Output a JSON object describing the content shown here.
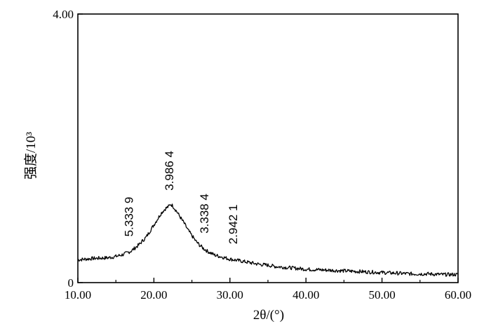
{
  "chart_data": {
    "type": "line",
    "title": "",
    "xlabel": "2θ/(°)",
    "ylabel": "强度/10³",
    "xlim": [
      10,
      60
    ],
    "ylim": [
      0,
      4
    ],
    "x_ticks": [
      10,
      20,
      30,
      40,
      50,
      60
    ],
    "x_tick_labels": [
      "10.00",
      "20.00",
      "30.00",
      "40.00",
      "50.00",
      "60.00"
    ],
    "y_ticks": [
      0,
      4
    ],
    "y_tick_labels": [
      "0",
      "4.00"
    ],
    "grid": false,
    "legend": "none",
    "line_color": "#000000",
    "series": [
      {
        "x": [
          10,
          12,
          14,
          15,
          16,
          17,
          18,
          18.5,
          19,
          19.5,
          20,
          20.5,
          21,
          21.5,
          22,
          22.2,
          22.5,
          23,
          23.5,
          24,
          24.5,
          25,
          25.5,
          26,
          26.5,
          27,
          27.5,
          28,
          29,
          30,
          31,
          32,
          33,
          34,
          35,
          36,
          38,
          40,
          42,
          44,
          46,
          48,
          50,
          52,
          54,
          56,
          58,
          60
        ],
        "y": [
          0.34,
          0.36,
          0.37,
          0.39,
          0.42,
          0.47,
          0.56,
          0.62,
          0.68,
          0.77,
          0.86,
          0.95,
          1.04,
          1.1,
          1.14,
          1.17,
          1.14,
          1.06,
          0.97,
          0.88,
          0.78,
          0.7,
          0.62,
          0.56,
          0.51,
          0.47,
          0.44,
          0.41,
          0.38,
          0.35,
          0.33,
          0.31,
          0.29,
          0.27,
          0.26,
          0.24,
          0.22,
          0.2,
          0.19,
          0.18,
          0.17,
          0.16,
          0.15,
          0.14,
          0.13,
          0.13,
          0.12,
          0.12
        ]
      }
    ],
    "annotations": [
      {
        "text": "5.333 9",
        "x": 16.7
      },
      {
        "text": "3.986 4",
        "x": 22.0
      },
      {
        "text": "3.338 4",
        "x": 26.6
      },
      {
        "text": "2.942 1",
        "x": 30.4
      }
    ]
  }
}
